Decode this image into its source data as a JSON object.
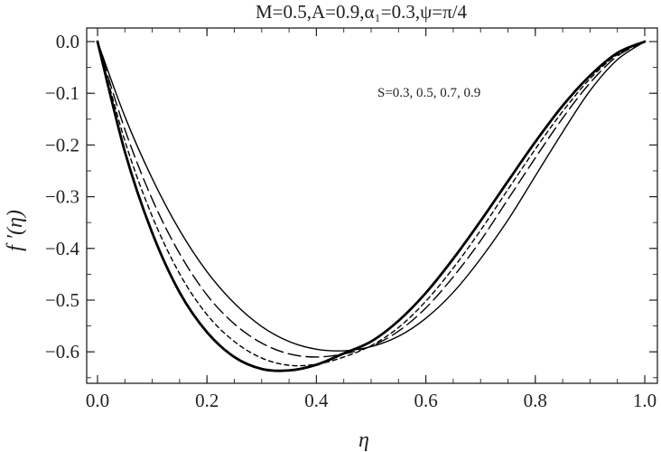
{
  "chart_data": {
    "type": "line",
    "title": "M=0.5,A=0.9,α₁=0.3,ψ=π/4",
    "xlabel": "η",
    "ylabel": "f ′(η)",
    "annotation": "S=0.3, 0.5, 0.7, 0.9",
    "xlim": [
      0.0,
      1.0
    ],
    "ylim": [
      -0.66,
      0.02
    ],
    "grid": false,
    "x_ticks": [
      {
        "value": 0.0,
        "label": "0.0"
      },
      {
        "value": 0.2,
        "label": "0.2"
      },
      {
        "value": 0.4,
        "label": "0.4"
      },
      {
        "value": 0.6,
        "label": "0.6"
      },
      {
        "value": 0.8,
        "label": "0.8"
      },
      {
        "value": 1.0,
        "label": "1.0"
      }
    ],
    "y_ticks": [
      {
        "value": 0.0,
        "label": "0.0"
      },
      {
        "value": -0.1,
        "label": "−0.1"
      },
      {
        "value": -0.2,
        "label": "−0.2"
      },
      {
        "value": -0.3,
        "label": "−0.3"
      },
      {
        "value": -0.4,
        "label": "−0.4"
      },
      {
        "value": -0.5,
        "label": "−0.5"
      },
      {
        "value": -0.6,
        "label": "−0.6"
      }
    ],
    "x": [
      0.0,
      0.05,
      0.1,
      0.15,
      0.2,
      0.25,
      0.3,
      0.35,
      0.4,
      0.45,
      0.5,
      0.55,
      0.6,
      0.65,
      0.7,
      0.75,
      0.8,
      0.85,
      0.9,
      0.95,
      1.0
    ],
    "series": [
      {
        "style": "thin-solid",
        "color": "#000000",
        "values": [
          0.0,
          -0.145,
          -0.265,
          -0.365,
          -0.445,
          -0.506,
          -0.551,
          -0.58,
          -0.595,
          -0.598,
          -0.59,
          -0.57,
          -0.535,
          -0.485,
          -0.42,
          -0.345,
          -0.26,
          -0.175,
          -0.095,
          -0.035,
          0.0
        ]
      },
      {
        "style": "long-dash",
        "color": "#000000",
        "values": [
          0.0,
          -0.17,
          -0.305,
          -0.41,
          -0.49,
          -0.546,
          -0.583,
          -0.604,
          -0.61,
          -0.604,
          -0.589,
          -0.56,
          -0.515,
          -0.455,
          -0.385,
          -0.305,
          -0.225,
          -0.148,
          -0.08,
          -0.028,
          0.0
        ]
      },
      {
        "style": "short-dash",
        "color": "#000000",
        "values": [
          0.0,
          -0.192,
          -0.338,
          -0.449,
          -0.528,
          -0.58,
          -0.612,
          -0.626,
          -0.624,
          -0.61,
          -0.588,
          -0.553,
          -0.502,
          -0.438,
          -0.365,
          -0.286,
          -0.208,
          -0.135,
          -0.072,
          -0.025,
          0.0
        ]
      },
      {
        "style": "thick-solid",
        "color": "#000000",
        "values": [
          0.0,
          -0.213,
          -0.37,
          -0.485,
          -0.562,
          -0.61,
          -0.633,
          -0.636,
          -0.625,
          -0.603,
          -0.58,
          -0.54,
          -0.486,
          -0.42,
          -0.347,
          -0.27,
          -0.194,
          -0.124,
          -0.066,
          -0.022,
          0.0
        ]
      }
    ]
  }
}
